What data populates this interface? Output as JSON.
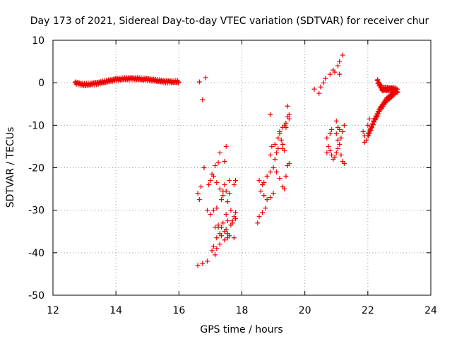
{
  "chart_data": {
    "type": "scatter",
    "title": "Day 173 of 2021, Sidereal Day-to-day VTEC variation (SDTVAR) for receiver chur",
    "xlabel": "GPS time / hours",
    "ylabel": "SDTVAR / TECUs",
    "xlim": [
      12,
      24
    ],
    "ylim": [
      -50,
      10
    ],
    "xticks": [
      12,
      14,
      16,
      18,
      20,
      22,
      24
    ],
    "yticks": [
      -50,
      -40,
      -30,
      -20,
      -10,
      0,
      10
    ],
    "xtick_labels": [
      "12",
      "14",
      "16",
      "18",
      "20",
      "22",
      "24"
    ],
    "ytick_labels": [
      "-50",
      "-40",
      "-30",
      "-20",
      "-10",
      "0",
      "10"
    ],
    "grid": true,
    "marker": "+",
    "color": "#ee0000",
    "series": [
      {
        "name": "SDTVAR",
        "segments": [
          {
            "kind": "band",
            "x_start": 12.7,
            "x_end": 16.0,
            "step": 0.02,
            "centerline": [
              [
                12.7,
                0.0
              ],
              [
                13.0,
                -0.5
              ],
              [
                13.5,
                0.0
              ],
              [
                14.0,
                0.8
              ],
              [
                14.5,
                1.0
              ],
              [
                15.0,
                0.8
              ],
              [
                15.5,
                0.3
              ],
              [
                16.0,
                0.2
              ]
            ],
            "spread": 0.6
          },
          {
            "kind": "band",
            "x_start": 22.3,
            "x_end": 22.95,
            "step": 0.012,
            "centerline": [
              [
                22.3,
                0.5
              ],
              [
                22.45,
                -1.5
              ],
              [
                22.6,
                -1.5
              ],
              [
                22.8,
                -1.5
              ],
              [
                22.95,
                -2.0
              ]
            ],
            "spread": 0.9
          },
          {
            "kind": "band",
            "x_start": 22.0,
            "x_end": 22.9,
            "step": 0.012,
            "centerline": [
              [
                22.0,
                -12.5
              ],
              [
                22.2,
                -9.0
              ],
              [
                22.4,
                -6.0
              ],
              [
                22.6,
                -4.0
              ],
              [
                22.9,
                -2.0
              ]
            ],
            "spread": 0.8
          }
        ],
        "points": [
          [
            16.65,
            0.2
          ],
          [
            16.75,
            -4.0
          ],
          [
            16.85,
            1.2
          ],
          [
            16.6,
            -43.0
          ],
          [
            16.75,
            -42.5
          ],
          [
            16.9,
            -42.0
          ],
          [
            16.6,
            -26.0
          ],
          [
            16.65,
            -27.5
          ],
          [
            16.7,
            -24.5
          ],
          [
            16.8,
            -20.0
          ],
          [
            16.9,
            -30.0
          ],
          [
            17.0,
            -23.0
          ],
          [
            17.1,
            -22.0
          ],
          [
            17.0,
            -31.0
          ],
          [
            17.1,
            -30.0
          ],
          [
            17.2,
            -29.5
          ],
          [
            16.95,
            -24.0
          ],
          [
            17.05,
            -21.5
          ],
          [
            17.15,
            -19.5
          ],
          [
            17.25,
            -18.8
          ],
          [
            17.2,
            -23.5
          ],
          [
            17.3,
            -25.0
          ],
          [
            17.4,
            -26.5
          ],
          [
            17.45,
            -24.0
          ],
          [
            17.5,
            -25.5
          ],
          [
            17.6,
            -23.0
          ],
          [
            17.1,
            -38.5
          ],
          [
            17.2,
            -36.5
          ],
          [
            17.3,
            -35.5
          ],
          [
            17.35,
            -34.0
          ],
          [
            17.4,
            -33.0
          ],
          [
            17.5,
            -34.5
          ],
          [
            17.55,
            -35.5
          ],
          [
            17.65,
            -33.5
          ],
          [
            17.7,
            -32.5
          ],
          [
            17.75,
            -31.5
          ],
          [
            17.8,
            -30.5
          ],
          [
            17.25,
            -34.0
          ],
          [
            17.35,
            -36.0
          ],
          [
            17.45,
            -37.0
          ],
          [
            17.6,
            -36.0
          ],
          [
            17.2,
            -39.0
          ],
          [
            17.3,
            -38.0
          ],
          [
            17.05,
            -39.5
          ],
          [
            17.15,
            -40.5
          ],
          [
            17.3,
            -16.5
          ],
          [
            17.45,
            -18.5
          ],
          [
            17.5,
            -15.0
          ],
          [
            17.55,
            -28.0
          ],
          [
            17.65,
            -30.0
          ],
          [
            17.75,
            -24.0
          ],
          [
            17.8,
            -23.0
          ],
          [
            17.35,
            -27.5
          ],
          [
            17.5,
            -31.0
          ],
          [
            17.55,
            -32.5
          ],
          [
            17.7,
            -33.0
          ],
          [
            17.8,
            -32.0
          ],
          [
            17.4,
            -25.5
          ],
          [
            17.6,
            -26.0
          ],
          [
            17.25,
            -33.5
          ],
          [
            17.15,
            -34.0
          ],
          [
            17.45,
            -35.0
          ],
          [
            17.55,
            -36.5
          ],
          [
            17.75,
            -36.5
          ],
          [
            18.5,
            -33.0
          ],
          [
            18.55,
            -31.5
          ],
          [
            18.65,
            -30.5
          ],
          [
            18.75,
            -29.5
          ],
          [
            18.6,
            -25.5
          ],
          [
            18.7,
            -26.5
          ],
          [
            18.8,
            -27.5
          ],
          [
            18.9,
            -27.0
          ],
          [
            19.0,
            -26.0
          ],
          [
            18.7,
            -23.5
          ],
          [
            18.8,
            -22.0
          ],
          [
            18.9,
            -21.0
          ],
          [
            19.0,
            -20.0
          ],
          [
            19.05,
            -18.0
          ],
          [
            19.1,
            -16.5
          ],
          [
            19.15,
            -15.5
          ],
          [
            18.9,
            -17.0
          ],
          [
            18.95,
            -15.0
          ],
          [
            19.05,
            -14.5
          ],
          [
            19.15,
            -13.0
          ],
          [
            19.2,
            -11.5
          ],
          [
            19.3,
            -10.5
          ],
          [
            19.35,
            -10.0
          ],
          [
            19.4,
            -9.5
          ],
          [
            19.45,
            -8.0
          ],
          [
            19.5,
            -7.5
          ],
          [
            19.5,
            -19.0
          ],
          [
            19.45,
            -19.5
          ],
          [
            19.4,
            -22.0
          ],
          [
            19.35,
            -25.0
          ],
          [
            19.3,
            -24.5
          ],
          [
            19.3,
            -15.5
          ],
          [
            19.35,
            -16.0
          ],
          [
            18.9,
            -7.5
          ],
          [
            19.45,
            -5.5
          ],
          [
            19.5,
            -8.5
          ],
          [
            19.4,
            -10.5
          ],
          [
            19.2,
            -12.0
          ],
          [
            19.25,
            -13.5
          ],
          [
            19.3,
            -14.5
          ],
          [
            18.55,
            -23.0
          ],
          [
            18.65,
            -24.0
          ],
          [
            19.1,
            -21.0
          ],
          [
            19.2,
            -22.5
          ],
          [
            20.3,
            -1.5
          ],
          [
            20.45,
            -2.5
          ],
          [
            20.5,
            -1.0
          ],
          [
            20.6,
            0.0
          ],
          [
            20.65,
            1.0
          ],
          [
            20.8,
            2.0
          ],
          [
            20.9,
            3.0
          ],
          [
            20.95,
            2.5
          ],
          [
            21.05,
            4.0
          ],
          [
            21.1,
            5.0
          ],
          [
            21.2,
            6.5
          ],
          [
            21.1,
            2.0
          ],
          [
            20.7,
            -13.0
          ],
          [
            20.75,
            -15.0
          ],
          [
            20.8,
            -16.0
          ],
          [
            20.85,
            -17.0
          ],
          [
            20.9,
            -18.0
          ],
          [
            20.95,
            -17.5
          ],
          [
            21.0,
            -16.5
          ],
          [
            21.05,
            -15.5
          ],
          [
            21.1,
            -14.5
          ],
          [
            21.0,
            -12.0
          ],
          [
            21.05,
            -10.5
          ],
          [
            21.1,
            -11.0
          ],
          [
            21.15,
            -13.0
          ],
          [
            21.2,
            -11.5
          ],
          [
            21.25,
            -10.0
          ],
          [
            20.7,
            -16.5
          ],
          [
            20.8,
            -12.0
          ],
          [
            20.85,
            -11.0
          ],
          [
            21.0,
            -9.0
          ],
          [
            21.15,
            -17.0
          ],
          [
            21.25,
            -19.0
          ],
          [
            21.2,
            -18.5
          ],
          [
            21.05,
            -13.5
          ],
          [
            21.85,
            -11.5
          ],
          [
            21.9,
            -12.5
          ],
          [
            21.95,
            -13.5
          ],
          [
            22.0,
            -10.0
          ],
          [
            22.05,
            -8.5
          ],
          [
            21.9,
            -14.0
          ]
        ]
      }
    ]
  }
}
